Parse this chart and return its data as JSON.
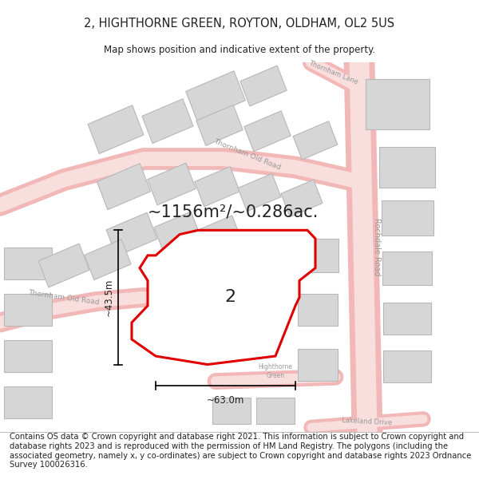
{
  "title": "2, HIGHTHORNE GREEN, ROYTON, OLDHAM, OL2 5US",
  "subtitle": "Map shows position and indicative extent of the property.",
  "footer": "Contains OS data © Crown copyright and database right 2021. This information is subject to Crown copyright and database rights 2023 and is reproduced with the permission of HM Land Registry. The polygons (including the associated geometry, namely x, y co-ordinates) are subject to Crown copyright and database rights 2023 Ordnance Survey 100026316.",
  "area_label": "~1156m²/~0.286ac.",
  "width_label": "~63.0m",
  "height_label": "~43.5m",
  "property_number": "2",
  "bg_color": "#ffffff",
  "map_bg": "#f7f7f7",
  "building_fill": "#d6d6d6",
  "building_stroke": "#b8b8b8",
  "road_outer": "#f2b8b8",
  "road_inner": "#f9dede",
  "highlight_color": "#e00000",
  "text_color": "#222222",
  "road_label_color": "#999999",
  "title_fontsize": 10.5,
  "subtitle_fontsize": 8.5,
  "footer_fontsize": 7.2,
  "area_fontsize": 15,
  "number_fontsize": 16,
  "dim_fontsize": 8.5
}
